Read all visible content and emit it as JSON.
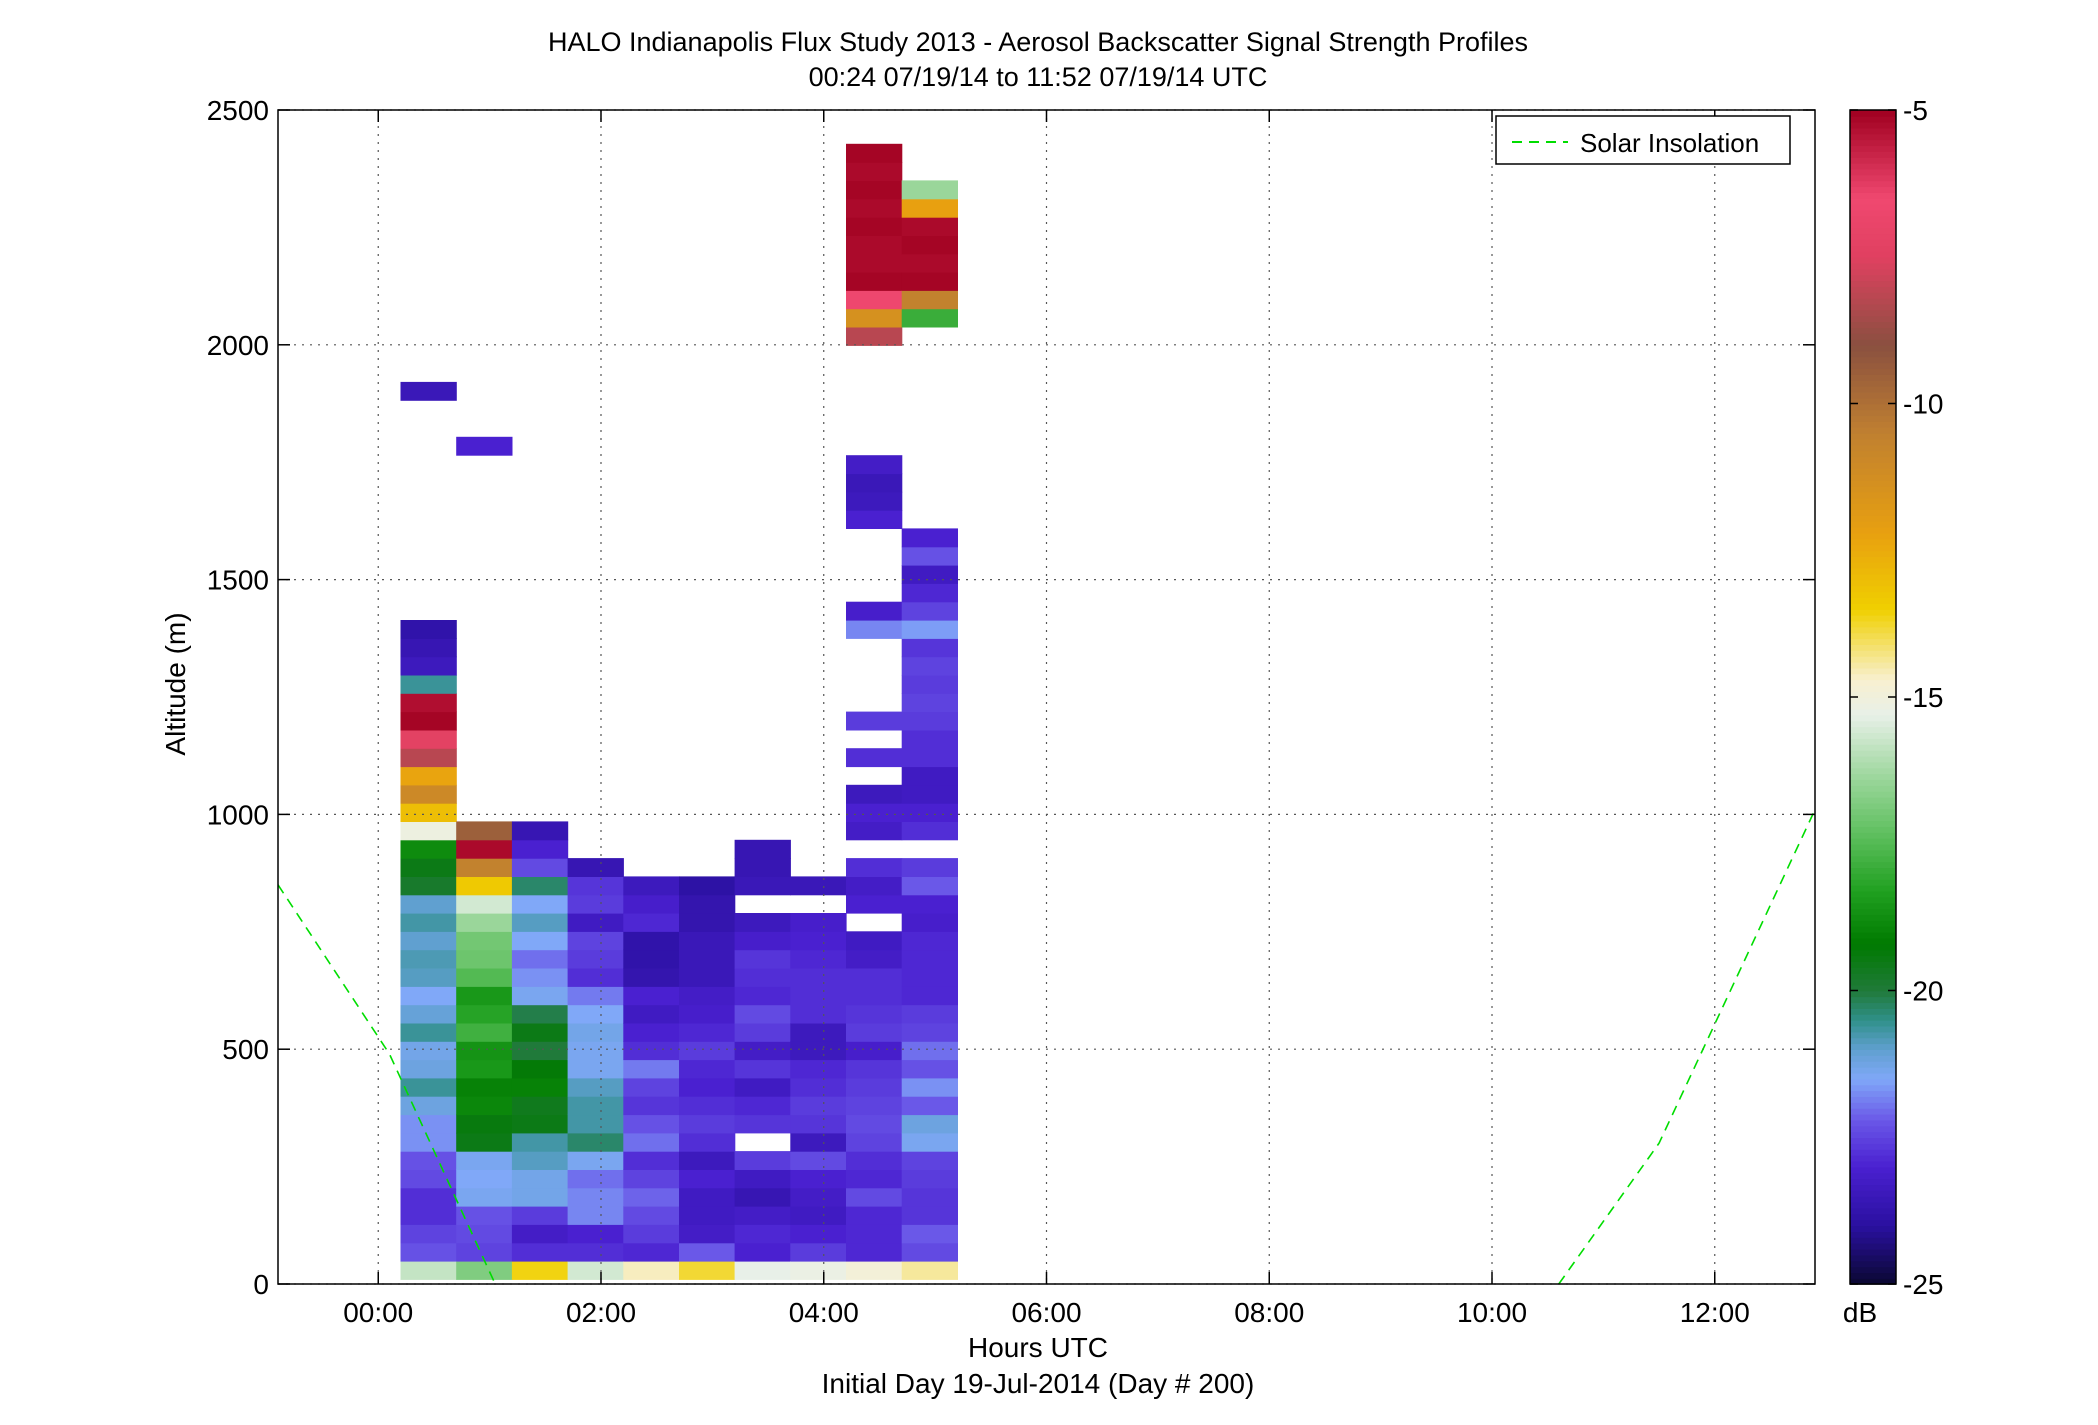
{
  "chart_data": {
    "type": "heatmap",
    "title": "HALO Indianapolis Flux Study 2013 - Aerosol Backscatter Signal Strength Profiles",
    "subtitle": "00:24 07/19/14 to 11:52 07/19/14  UTC",
    "xlabel": "Hours UTC",
    "xlabel2": "Initial Day 19-Jul-2014 (Day # 200)",
    "ylabel": "Altitude (m)",
    "x_ticks": [
      "00:00",
      "02:00",
      "04:00",
      "06:00",
      "08:00",
      "10:00",
      "12:00"
    ],
    "y_ticks": [
      "0",
      "500",
      "1000",
      "1500",
      "2000",
      "2500"
    ],
    "xlim_hours": [
      -0.9,
      12.9
    ],
    "ylim": [
      0,
      2500
    ],
    "grid": true,
    "legend": {
      "placement": "top-right",
      "entries": [
        {
          "label": "Solar Insolation",
          "color": "#00dd00",
          "style": "dashed"
        }
      ]
    },
    "colorbar": {
      "label": "dB",
      "min": -25,
      "max": -5,
      "ticks": [
        "-5",
        "-10",
        "-15",
        "-20",
        "-25"
      ]
    },
    "bin_width_hours": 0.5,
    "bin_height_m": 39,
    "columns": [
      {
        "t": 0.45,
        "cells": [
          [
            0,
            -15.8
          ],
          [
            1,
            -22.3
          ],
          [
            2,
            -22.5
          ],
          [
            3,
            -22.8
          ],
          [
            4,
            -22.8
          ],
          [
            5,
            -22.4
          ],
          [
            6,
            -22.3
          ],
          [
            7,
            -21.7
          ],
          [
            8,
            -21.7
          ],
          [
            9,
            -21.2
          ],
          [
            10,
            -20.6
          ],
          [
            11,
            -21.2
          ],
          [
            12,
            -21.3
          ],
          [
            13,
            -20.6
          ],
          [
            14,
            -21.1
          ],
          [
            15,
            -21.5
          ],
          [
            16,
            -20.9
          ],
          [
            17,
            -20.8
          ],
          [
            18,
            -21.0
          ],
          [
            19,
            -20.7
          ],
          [
            20,
            -21.0
          ],
          [
            21,
            -19.8
          ],
          [
            22,
            -19.5
          ],
          [
            23,
            -18.8
          ],
          [
            24,
            -15.1
          ],
          [
            25,
            -13.0
          ],
          [
            26,
            -11.0
          ],
          [
            27,
            -12.3
          ],
          [
            28,
            -8.2
          ],
          [
            29,
            -7.3
          ],
          [
            30,
            -5.1
          ],
          [
            31,
            -5.3
          ],
          [
            32,
            -20.6
          ],
          [
            33,
            -23.4
          ],
          [
            34,
            -23.6
          ],
          [
            35,
            -23.8
          ],
          [
            48,
            -23.5
          ]
        ]
      },
      {
        "t": 0.95,
        "cells": [
          [
            0,
            -16.8
          ],
          [
            1,
            -22.5
          ],
          [
            2,
            -22.4
          ],
          [
            3,
            -22.3
          ],
          [
            4,
            -21.4
          ],
          [
            5,
            -21.5
          ],
          [
            6,
            -21.4
          ],
          [
            7,
            -19.5
          ],
          [
            8,
            -19.4
          ],
          [
            9,
            -18.9
          ],
          [
            10,
            -19.0
          ],
          [
            11,
            -18.5
          ],
          [
            12,
            -18.6
          ],
          [
            13,
            -17.8
          ],
          [
            14,
            -18.2
          ],
          [
            15,
            -18.5
          ],
          [
            16,
            -17.5
          ],
          [
            17,
            -17.1
          ],
          [
            18,
            -17.0
          ],
          [
            19,
            -16.4
          ],
          [
            20,
            -15.6
          ],
          [
            21,
            -13.3
          ],
          [
            22,
            -10.6
          ],
          [
            23,
            -5.2
          ],
          [
            24,
            -9.5
          ],
          [
            45,
            -23.0
          ]
        ]
      },
      {
        "t": 1.45,
        "cells": [
          [
            0,
            -13.6
          ],
          [
            1,
            -22.8
          ],
          [
            2,
            -23.2
          ],
          [
            3,
            -22.6
          ],
          [
            4,
            -21.3
          ],
          [
            5,
            -21.3
          ],
          [
            6,
            -20.9
          ],
          [
            7,
            -20.7
          ],
          [
            8,
            -19.5
          ],
          [
            9,
            -19.6
          ],
          [
            10,
            -19.0
          ],
          [
            11,
            -19.3
          ],
          [
            12,
            -20.0
          ],
          [
            13,
            -19.5
          ],
          [
            14,
            -20.1
          ],
          [
            15,
            -21.4
          ],
          [
            16,
            -21.7
          ],
          [
            17,
            -22.0
          ],
          [
            18,
            -21.5
          ],
          [
            19,
            -20.9
          ],
          [
            20,
            -21.5
          ],
          [
            21,
            -20.3
          ],
          [
            22,
            -22.4
          ],
          [
            23,
            -23.0
          ],
          [
            24,
            -23.6
          ]
        ]
      },
      {
        "t": 1.95,
        "cells": [
          [
            0,
            -15.6
          ],
          [
            1,
            -22.8
          ],
          [
            2,
            -23.0
          ],
          [
            3,
            -21.8
          ],
          [
            4,
            -21.8
          ],
          [
            5,
            -22.0
          ],
          [
            6,
            -21.4
          ],
          [
            7,
            -20.3
          ],
          [
            8,
            -20.7
          ],
          [
            9,
            -20.7
          ],
          [
            10,
            -20.9
          ],
          [
            11,
            -21.4
          ],
          [
            12,
            -21.4
          ],
          [
            13,
            -21.3
          ],
          [
            14,
            -21.5
          ],
          [
            15,
            -21.9
          ],
          [
            16,
            -22.8
          ],
          [
            17,
            -22.6
          ],
          [
            18,
            -22.5
          ],
          [
            19,
            -23.3
          ],
          [
            20,
            -22.6
          ],
          [
            21,
            -22.7
          ],
          [
            22,
            -23.6
          ]
        ]
      },
      {
        "t": 2.45,
        "cells": [
          [
            0,
            -14.6
          ],
          [
            1,
            -22.9
          ],
          [
            2,
            -22.6
          ],
          [
            3,
            -22.4
          ],
          [
            4,
            -22.1
          ],
          [
            5,
            -22.5
          ],
          [
            6,
            -22.8
          ],
          [
            7,
            -22.0
          ],
          [
            8,
            -22.3
          ],
          [
            9,
            -22.7
          ],
          [
            10,
            -22.5
          ],
          [
            11,
            -21.9
          ],
          [
            12,
            -22.8
          ],
          [
            13,
            -23.0
          ],
          [
            14,
            -23.3
          ],
          [
            15,
            -23.0
          ],
          [
            16,
            -23.7
          ],
          [
            17,
            -23.8
          ],
          [
            18,
            -23.8
          ],
          [
            19,
            -22.9
          ],
          [
            20,
            -23.1
          ],
          [
            21,
            -23.4
          ]
        ]
      },
      {
        "t": 2.95,
        "cells": [
          [
            0,
            -13.8
          ],
          [
            1,
            -22.2
          ],
          [
            2,
            -23.2
          ],
          [
            3,
            -23.3
          ],
          [
            4,
            -23.3
          ],
          [
            5,
            -23.0
          ],
          [
            6,
            -23.4
          ],
          [
            7,
            -22.8
          ],
          [
            8,
            -22.6
          ],
          [
            9,
            -22.8
          ],
          [
            10,
            -23.0
          ],
          [
            11,
            -22.9
          ],
          [
            12,
            -22.6
          ],
          [
            13,
            -22.9
          ],
          [
            14,
            -23.1
          ],
          [
            15,
            -23.2
          ],
          [
            16,
            -23.5
          ],
          [
            17,
            -23.5
          ],
          [
            18,
            -23.5
          ],
          [
            19,
            -23.7
          ],
          [
            20,
            -23.7
          ],
          [
            21,
            -23.9
          ]
        ]
      },
      {
        "t": 3.45,
        "cells": [
          [
            0,
            -15.3
          ],
          [
            1,
            -23.0
          ],
          [
            2,
            -22.9
          ],
          [
            3,
            -23.2
          ],
          [
            4,
            -23.6
          ],
          [
            5,
            -23.3
          ],
          [
            6,
            -22.6
          ],
          [
            8,
            -22.7
          ],
          [
            9,
            -22.9
          ],
          [
            10,
            -23.3
          ],
          [
            11,
            -22.7
          ],
          [
            12,
            -23.2
          ],
          [
            13,
            -22.6
          ],
          [
            14,
            -22.4
          ],
          [
            15,
            -22.9
          ],
          [
            16,
            -22.8
          ],
          [
            17,
            -22.7
          ],
          [
            18,
            -23.1
          ],
          [
            19,
            -23.4
          ],
          [
            21,
            -23.5
          ],
          [
            22,
            -23.6
          ],
          [
            23,
            -23.6
          ]
        ]
      },
      {
        "t": 3.95,
        "cells": [
          [
            0,
            -15.2
          ],
          [
            1,
            -22.6
          ],
          [
            2,
            -23.0
          ],
          [
            3,
            -23.3
          ],
          [
            4,
            -23.2
          ],
          [
            5,
            -23.0
          ],
          [
            6,
            -22.4
          ],
          [
            7,
            -23.4
          ],
          [
            8,
            -22.7
          ],
          [
            9,
            -22.6
          ],
          [
            10,
            -22.8
          ],
          [
            11,
            -22.9
          ],
          [
            12,
            -23.4
          ],
          [
            13,
            -23.4
          ],
          [
            14,
            -22.8
          ],
          [
            15,
            -22.8
          ],
          [
            16,
            -22.8
          ],
          [
            17,
            -22.9
          ],
          [
            18,
            -23.0
          ],
          [
            19,
            -23.1
          ],
          [
            21,
            -23.5
          ]
        ]
      },
      {
        "t": 4.45,
        "cells": [
          [
            0,
            -14.9
          ],
          [
            1,
            -22.9
          ],
          [
            2,
            -22.9
          ],
          [
            3,
            -22.9
          ],
          [
            4,
            -22.4
          ],
          [
            5,
            -22.9
          ],
          [
            6,
            -22.8
          ],
          [
            7,
            -22.5
          ],
          [
            8,
            -22.4
          ],
          [
            9,
            -22.5
          ],
          [
            10,
            -22.6
          ],
          [
            11,
            -22.7
          ],
          [
            12,
            -23.1
          ],
          [
            13,
            -22.6
          ],
          [
            14,
            -22.7
          ],
          [
            15,
            -22.8
          ],
          [
            16,
            -22.8
          ],
          [
            17,
            -23.2
          ],
          [
            18,
            -23.3
          ],
          [
            20,
            -23.0
          ],
          [
            21,
            -23.2
          ],
          [
            22,
            -22.8
          ],
          [
            24,
            -23.2
          ],
          [
            25,
            -23.0
          ],
          [
            26,
            -23.4
          ],
          [
            28,
            -22.8
          ],
          [
            30,
            -22.6
          ],
          [
            35,
            -21.8
          ],
          [
            36,
            -23.1
          ],
          [
            41,
            -23.0
          ],
          [
            42,
            -23.4
          ],
          [
            43,
            -23.5
          ],
          [
            44,
            -23.2
          ],
          [
            51,
            -8.2
          ],
          [
            52,
            -11.4
          ],
          [
            53,
            -6.6
          ],
          [
            54,
            -5.1
          ],
          [
            55,
            -5.2
          ],
          [
            56,
            -5.2
          ],
          [
            57,
            -5.1
          ],
          [
            58,
            -5.2
          ],
          [
            59,
            -5.1
          ],
          [
            60,
            -5.2
          ],
          [
            61,
            -5.1
          ]
        ]
      },
      {
        "t": 4.95,
        "cells": [
          [
            0,
            -14.4
          ],
          [
            1,
            -22.4
          ],
          [
            2,
            -22.2
          ],
          [
            3,
            -22.7
          ],
          [
            4,
            -22.7
          ],
          [
            5,
            -22.6
          ],
          [
            6,
            -22.5
          ],
          [
            7,
            -21.4
          ],
          [
            8,
            -21.2
          ],
          [
            9,
            -22.2
          ],
          [
            10,
            -21.7
          ],
          [
            11,
            -22.3
          ],
          [
            12,
            -22.0
          ],
          [
            13,
            -22.5
          ],
          [
            14,
            -22.6
          ],
          [
            15,
            -22.9
          ],
          [
            16,
            -22.9
          ],
          [
            17,
            -22.9
          ],
          [
            18,
            -22.9
          ],
          [
            19,
            -23.1
          ],
          [
            20,
            -23.0
          ],
          [
            21,
            -22.2
          ],
          [
            22,
            -22.6
          ],
          [
            24,
            -22.8
          ],
          [
            25,
            -23.0
          ],
          [
            26,
            -23.3
          ],
          [
            27,
            -23.3
          ],
          [
            28,
            -22.8
          ],
          [
            29,
            -22.8
          ],
          [
            30,
            -22.6
          ],
          [
            31,
            -22.5
          ],
          [
            32,
            -22.6
          ],
          [
            33,
            -22.5
          ],
          [
            34,
            -22.7
          ],
          [
            35,
            -21.6
          ],
          [
            36,
            -22.5
          ],
          [
            37,
            -22.9
          ],
          [
            38,
            -23.3
          ],
          [
            39,
            -22.3
          ],
          [
            40,
            -23.0
          ],
          [
            52,
            -17.9
          ],
          [
            53,
            -10.6
          ],
          [
            54,
            -5.1
          ],
          [
            55,
            -5.2
          ],
          [
            56,
            -5.1
          ],
          [
            57,
            -5.2
          ],
          [
            58,
            -12.2
          ],
          [
            59,
            -16.4
          ]
        ]
      }
    ]
  }
}
